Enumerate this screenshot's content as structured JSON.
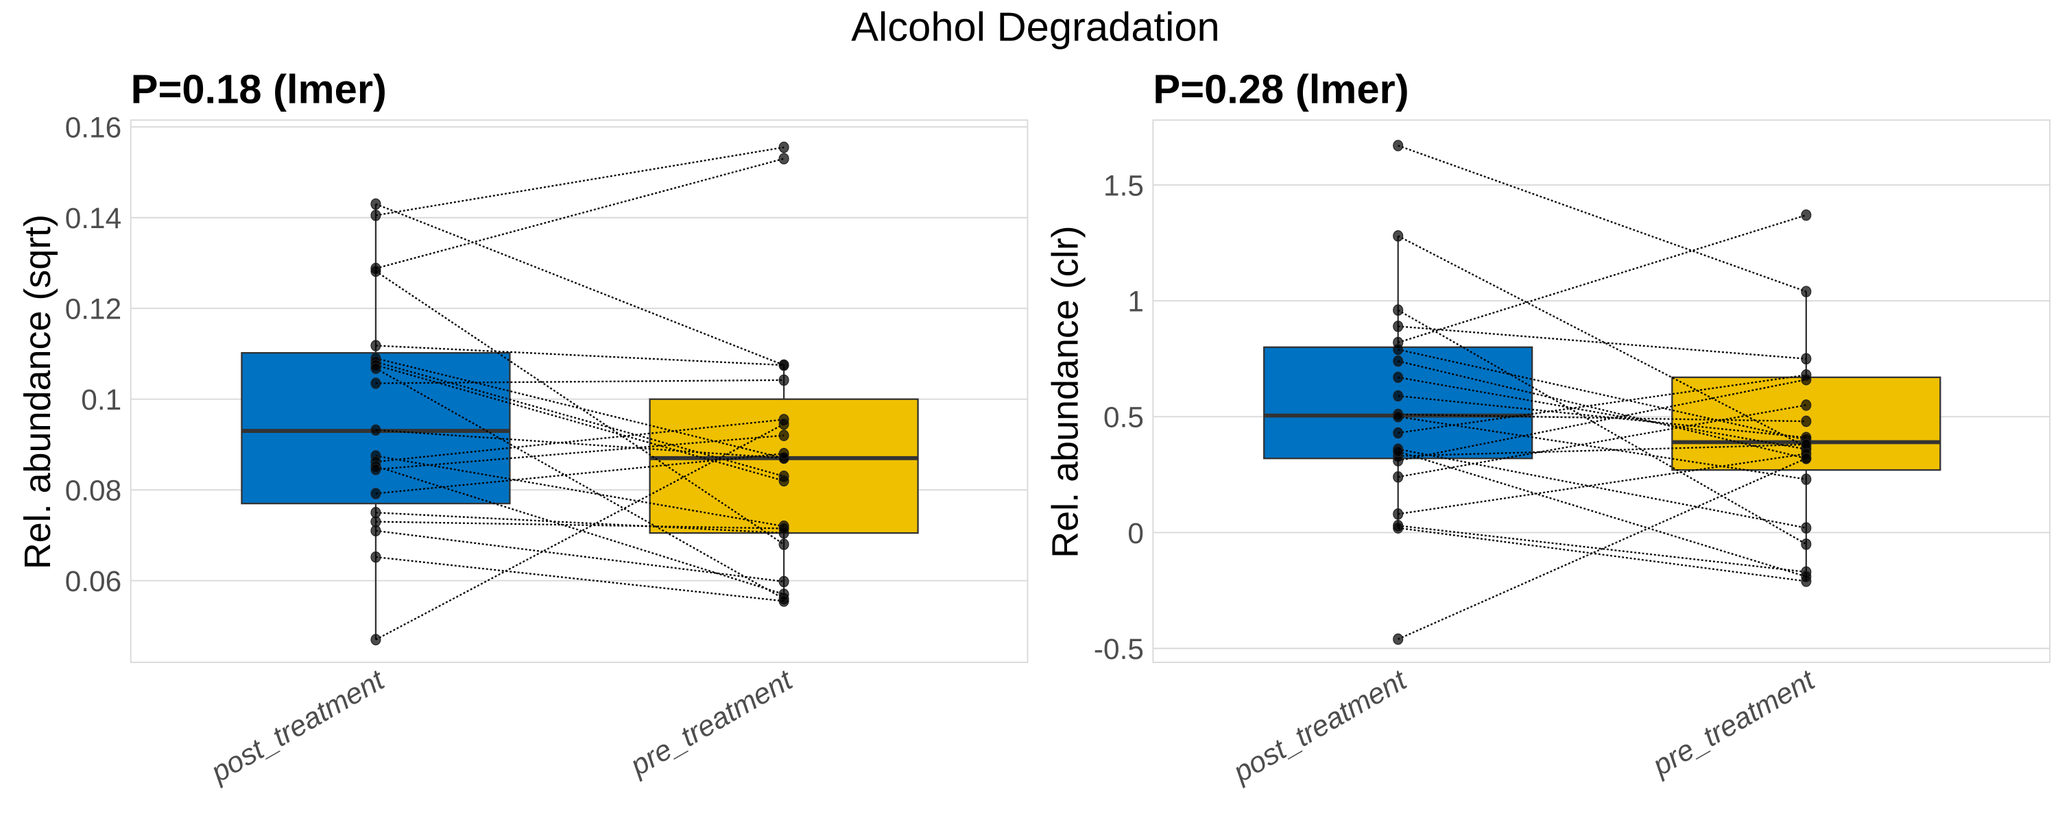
{
  "title": "Alcohol Degradation",
  "colors": {
    "post_treatment": "#0072C2",
    "pre_treatment": "#EFC000"
  },
  "chart_data": [
    {
      "type": "boxplot",
      "title": "P=0.18 (lmer)",
      "xlabel": "",
      "ylabel": "Rel. abundance (sqrt)",
      "categories": [
        "post_treatment",
        "pre_treatment"
      ],
      "ylim": [
        0.042,
        0.1615
      ],
      "yticks": [
        0.06,
        0.08,
        0.1,
        0.12,
        0.14,
        0.16
      ],
      "ytick_labels": [
        "0.06",
        "0.08",
        "0.1",
        "0.12",
        "0.14",
        "0.16"
      ],
      "grid": true,
      "boxes": [
        {
          "group": "post_treatment",
          "q1": 0.077,
          "median": 0.093,
          "q3": 0.1102,
          "whisker_low": 0.047,
          "whisker_high": 0.143
        },
        {
          "group": "pre_treatment",
          "q1": 0.0705,
          "median": 0.087,
          "q3": 0.1,
          "whisker_low": 0.0555,
          "whisker_high": 0.1075
        }
      ],
      "pairs": [
        {
          "post": 0.143,
          "pre": 0.1075
        },
        {
          "post": 0.1405,
          "pre": 0.1555
        },
        {
          "post": 0.1288,
          "pre": 0.153
        },
        {
          "post": 0.1282,
          "pre": 0.068
        },
        {
          "post": 0.1118,
          "pre": 0.1075
        },
        {
          "post": 0.109,
          "pre": 0.087
        },
        {
          "post": 0.1082,
          "pre": 0.083
        },
        {
          "post": 0.1075,
          "pre": 0.082
        },
        {
          "post": 0.1068,
          "pre": 0.056
        },
        {
          "post": 0.1035,
          "pre": 0.1042
        },
        {
          "post": 0.0932,
          "pre": 0.087
        },
        {
          "post": 0.0875,
          "pre": 0.072
        },
        {
          "post": 0.0862,
          "pre": 0.0955
        },
        {
          "post": 0.0852,
          "pre": 0.057
        },
        {
          "post": 0.0845,
          "pre": 0.092
        },
        {
          "post": 0.0792,
          "pre": 0.088
        },
        {
          "post": 0.075,
          "pre": 0.0705
        },
        {
          "post": 0.073,
          "pre": 0.0715
        },
        {
          "post": 0.071,
          "pre": 0.0598
        },
        {
          "post": 0.0652,
          "pre": 0.0555
        },
        {
          "post": 0.047,
          "pre": 0.0945
        }
      ]
    },
    {
      "type": "boxplot",
      "title": "P=0.28 (lmer)",
      "xlabel": "",
      "ylabel": "Rel. abundance (clr)",
      "categories": [
        "post_treatment",
        "pre_treatment"
      ],
      "ylim": [
        -0.56,
        1.78
      ],
      "yticks": [
        -0.5,
        0,
        0.5,
        1,
        1.5
      ],
      "ytick_labels": [
        "-0.5",
        "0",
        "0.5",
        "1",
        "1.5"
      ],
      "grid": true,
      "boxes": [
        {
          "group": "post_treatment",
          "q1": 0.32,
          "median": 0.505,
          "q3": 0.8,
          "whisker_low": 0.02,
          "whisker_high": 1.28
        },
        {
          "group": "pre_treatment",
          "q1": 0.27,
          "median": 0.39,
          "q3": 0.67,
          "whisker_low": -0.21,
          "whisker_high": 1.04
        }
      ],
      "pairs": [
        {
          "post": 1.67,
          "pre": 1.04
        },
        {
          "post": 1.28,
          "pre": 0.37
        },
        {
          "post": 0.96,
          "pre": -0.05
        },
        {
          "post": 0.89,
          "pre": 0.75
        },
        {
          "post": 0.82,
          "pre": 1.37
        },
        {
          "post": 0.79,
          "pre": 0.4
        },
        {
          "post": 0.74,
          "pre": 0.32
        },
        {
          "post": 0.67,
          "pre": 0.36
        },
        {
          "post": 0.59,
          "pre": 0.41
        },
        {
          "post": 0.51,
          "pre": 0.48
        },
        {
          "post": 0.5,
          "pre": 0.23
        },
        {
          "post": 0.43,
          "pre": 0.68
        },
        {
          "post": 0.36,
          "pre": 0.02
        },
        {
          "post": 0.33,
          "pre": 0.38
        },
        {
          "post": 0.31,
          "pre": 0.66
        },
        {
          "post": 0.24,
          "pre": 0.55
        },
        {
          "post": 0.08,
          "pre": 0.34
        },
        {
          "post": 0.03,
          "pre": -0.17
        },
        {
          "post": 0.02,
          "pre": -0.21
        },
        {
          "post": -0.46,
          "pre": 0.32
        },
        {
          "post": 0.35,
          "pre": -0.19
        }
      ]
    }
  ]
}
